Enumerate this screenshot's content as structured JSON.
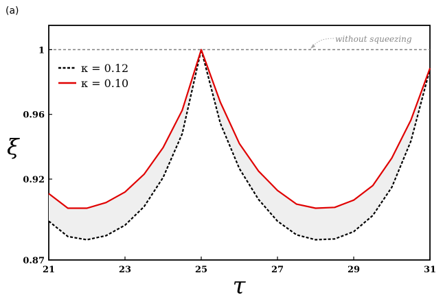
{
  "panel_label": "(a)",
  "annotation": "without squeezing",
  "colors": {
    "kappa_012": "#000000",
    "kappa_010": "#e00000",
    "fill": "#efefef",
    "reference": "#808080"
  },
  "chart_data": {
    "type": "line",
    "xlabel": "τ",
    "ylabel": "ξ",
    "xlim": [
      21,
      31
    ],
    "ylim": [
      0.87,
      1.015
    ],
    "xticks": [
      21,
      23,
      25,
      27,
      29,
      31
    ],
    "xtick_labels": [
      "21",
      "23",
      "25",
      "27",
      "29",
      "31"
    ],
    "yticks": [
      0.87,
      0.92,
      0.96,
      1
    ],
    "ytick_labels": [
      "0.87",
      "0.92",
      "0.96",
      "1"
    ],
    "reference_line": {
      "y": 1.0,
      "label": "without squeezing",
      "style": "dashed"
    },
    "legend_position": "upper-left",
    "shaded_between_series": true,
    "series": [
      {
        "name": "κ = 0.12",
        "style": "dashed",
        "x": [
          21,
          21.5,
          22,
          22.5,
          23,
          23.5,
          24,
          24.5,
          25,
          25.5,
          26,
          26.5,
          27,
          27.5,
          28,
          28.5,
          29,
          29.5,
          30,
          30.5,
          31
        ],
        "y": [
          0.894,
          0.8845,
          0.8825,
          0.885,
          0.8915,
          0.903,
          0.921,
          0.948,
          1.0,
          0.9545,
          0.9265,
          0.9075,
          0.894,
          0.8855,
          0.8825,
          0.883,
          0.8875,
          0.8975,
          0.915,
          0.9435,
          0.988
        ]
      },
      {
        "name": "κ = 0.10",
        "style": "solid",
        "x": [
          21,
          21.5,
          22,
          22.5,
          23,
          23.5,
          24,
          24.5,
          25,
          25.5,
          26,
          26.5,
          27,
          27.5,
          28,
          28.5,
          29,
          29.5,
          30,
          30.5,
          31
        ],
        "y": [
          0.911,
          0.902,
          0.902,
          0.9055,
          0.912,
          0.923,
          0.9395,
          0.9625,
          1.0,
          0.9675,
          0.942,
          0.925,
          0.913,
          0.9045,
          0.902,
          0.9025,
          0.907,
          0.916,
          0.933,
          0.9565,
          0.9885
        ]
      }
    ]
  }
}
